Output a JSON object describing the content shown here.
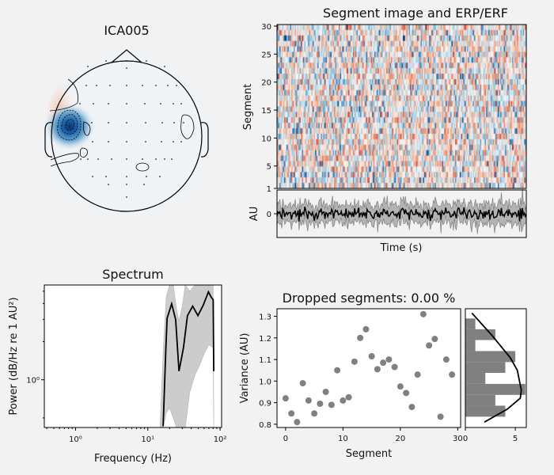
{
  "topomap": {
    "title": "ICA005",
    "colormap": "RdBu_r"
  },
  "image_panel": {
    "title": "Segment image and ERP/ERF",
    "ylabel": "Segment",
    "yticks": [
      "1",
      "5",
      "10",
      "15",
      "20",
      "25",
      "30"
    ],
    "colormap": "RdBu_r"
  },
  "erp_panel": {
    "ylabel": "AU",
    "xlabel": "Time (s)",
    "yticks": [
      "0"
    ],
    "line_color": "#000000",
    "band_color": "#808080"
  },
  "chart_data": [
    {
      "type": "line",
      "title": "Spectrum",
      "xlabel": "Frequency (Hz)",
      "ylabel": "Power (dB/Hz re 1 AU²)",
      "xscale": "log",
      "yscale": "log",
      "xlim": [
        0.37,
        105
      ],
      "ylim": [
        0.42,
        5.6
      ],
      "xticks": [
        "10⁰",
        "10¹",
        "10²"
      ],
      "yticks": [
        "10⁰"
      ],
      "series": [
        {
          "role": "mean",
          "color": "#000000",
          "x": [
            16.3,
            17.8,
            18.5,
            21.4,
            24.3,
            27.0,
            29.4,
            31.2,
            35.4,
            41.8,
            49.4,
            58.5,
            69.0,
            75.3,
            80.3,
            81.8
          ],
          "y": [
            0.43,
            1.8,
            3.06,
            3.98,
            2.98,
            1.17,
            1.5,
            1.8,
            3.21,
            3.81,
            3.21,
            3.88,
            4.94,
            4.49,
            4.28,
            1.17
          ]
        },
        {
          "role": "upper",
          "color": "#bbbbbb",
          "x": [
            14.8,
            16.3,
            18.0,
            20.0,
            22.5,
            25.0,
            27.0,
            30.0,
            33.0,
            38.0,
            45.0,
            52.0,
            60.0,
            70.0,
            80.0,
            81.8
          ],
          "y": [
            0.42,
            1.6,
            4.5,
            6.0,
            6.0,
            3.6,
            2.9,
            3.8,
            5.6,
            5.0,
            6.0,
            5.5,
            6.0,
            6.0,
            6.0,
            0.42
          ]
        },
        {
          "role": "lower",
          "color": "#bbbbbb",
          "x": [
            14.8,
            16.3,
            18.0,
            20.0,
            22.5,
            25.0,
            27.0,
            30.0,
            33.0,
            38.0,
            45.0,
            52.0,
            60.0,
            70.0,
            80.0,
            81.8
          ],
          "y": [
            0.42,
            0.42,
            0.55,
            0.6,
            0.5,
            0.42,
            0.42,
            0.42,
            0.42,
            0.8,
            1.1,
            1.3,
            1.6,
            1.9,
            1.8,
            0.42
          ]
        }
      ]
    },
    {
      "type": "scatter",
      "title": "Dropped segments: 0.00 %",
      "xlabel": "Segment",
      "ylabel": "Variance (AU)",
      "xlim": [
        -1.5,
        30.5
      ],
      "ylim": [
        0.785,
        1.335
      ],
      "xticks": [
        0,
        10,
        20,
        30
      ],
      "yticks": [
        0.8,
        0.9,
        1.0,
        1.1,
        1.2,
        1.3
      ],
      "color": "#808080",
      "x": [
        0,
        1,
        2,
        3,
        4,
        5,
        6,
        7,
        8,
        9,
        10,
        11,
        12,
        13,
        14,
        15,
        16,
        17,
        18,
        19,
        20,
        21,
        22,
        23,
        24,
        25,
        26,
        27,
        28,
        29
      ],
      "y": [
        0.92,
        0.85,
        0.81,
        0.99,
        0.91,
        0.85,
        0.895,
        0.95,
        0.89,
        1.05,
        0.91,
        0.925,
        1.09,
        1.2,
        1.24,
        1.115,
        1.055,
        1.085,
        1.1,
        1.065,
        0.975,
        0.945,
        0.88,
        1.03,
        1.31,
        1.165,
        1.195,
        0.835,
        1.1,
        1.03
      ]
    },
    {
      "type": "bar",
      "orientation": "horizontal",
      "xlim": [
        0,
        6.1
      ],
      "xticks": [
        0,
        5
      ],
      "color": "#808080",
      "bin_edges": [
        0.835,
        0.886,
        0.936,
        0.987,
        1.038,
        1.088,
        1.139,
        1.19,
        1.24,
        1.29
      ],
      "counts": [
        4,
        3,
        6,
        2,
        4,
        5,
        1,
        3,
        1
      ],
      "kde": {
        "x": [
          1.9,
          4.2,
          5.5,
          5.6,
          5.2,
          4.5,
          2.6,
          0.65
        ],
        "y": [
          0.81,
          0.87,
          0.921,
          0.958,
          1.05,
          1.108,
          1.215,
          1.315
        ],
        "color": "#000000"
      }
    }
  ]
}
